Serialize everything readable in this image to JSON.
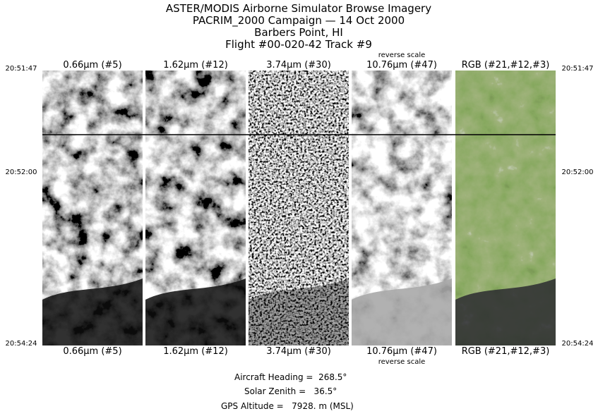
{
  "header": {
    "lines": [
      "ASTER/MODIS Airborne Simulator Browse Imagery",
      "PACRIM_2000 Campaign — 14 Oct 2000",
      "Barbers Point, HI",
      "Flight #00-020-42 Track #9"
    ]
  },
  "times": [
    "20:51:47",
    "20:52:00",
    "20:54:24"
  ],
  "panels": [
    {
      "top_label": "0.66μm (#5)",
      "bottom_label": "0.66μm (#5)"
    },
    {
      "top_label": "1.62μm (#12)",
      "bottom_label": "1.62μm (#12)"
    },
    {
      "top_label": "3.74μm (#30)",
      "bottom_label": "3.74μm (#30)"
    },
    {
      "top_label": "10.76μm (#47)",
      "bottom_label": "10.76μm (#47)",
      "top_note": "reverse scale",
      "bottom_note": "reverse scale"
    },
    {
      "top_label": "RGB (#21,#12,#3)",
      "bottom_label": "RGB (#21,#12,#3)"
    }
  ],
  "footer": {
    "lines": [
      "Aircraft Heading =  268.5°",
      "Solar Zenith =   36.5°",
      "GPS Altitude =   7928. m (MSL)"
    ]
  }
}
